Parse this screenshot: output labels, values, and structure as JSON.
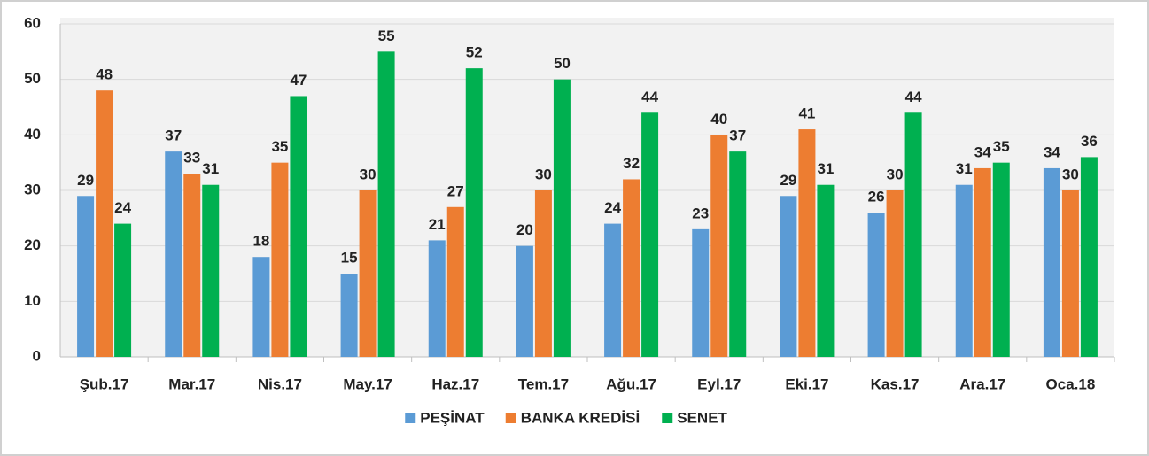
{
  "chart_data": {
    "type": "bar",
    "categories": [
      "Şub.17",
      "Mar.17",
      "Nis.17",
      "May.17",
      "Haz.17",
      "Tem.17",
      "Ağu.17",
      "Eyl.17",
      "Eki.17",
      "Kas.17",
      "Ara.17",
      "Oca.18"
    ],
    "series": [
      {
        "name": "PEŞİNAT",
        "color": "#5b9bd5",
        "values": [
          29,
          37,
          18,
          15,
          21,
          20,
          24,
          23,
          29,
          26,
          31,
          34
        ]
      },
      {
        "name": "BANKA KREDİSİ",
        "color": "#ed7d31",
        "values": [
          48,
          33,
          35,
          30,
          27,
          30,
          32,
          40,
          41,
          30,
          34,
          30
        ]
      },
      {
        "name": "SENET",
        "color": "#00b050",
        "values": [
          24,
          31,
          47,
          55,
          52,
          50,
          44,
          37,
          31,
          44,
          35,
          36
        ]
      }
    ],
    "ylim": [
      0,
      60
    ],
    "yticks": [
      0,
      10,
      20,
      30,
      40,
      50,
      60
    ],
    "grid": true,
    "legend": "bottom"
  }
}
